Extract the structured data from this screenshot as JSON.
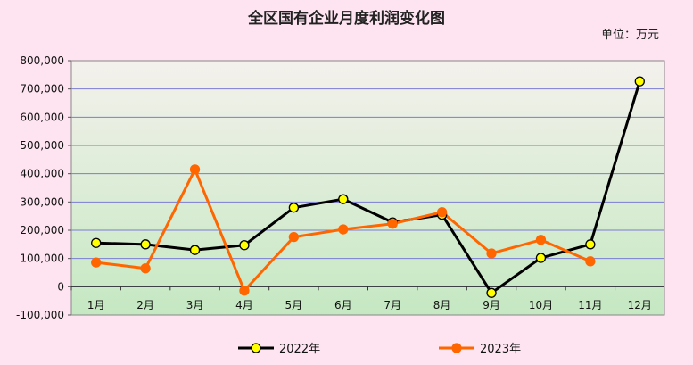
{
  "chart_data": {
    "type": "line",
    "title": "全区国有企业月度利润变化图",
    "unit": "单位：万元",
    "categories": [
      "1月",
      "2月",
      "3月",
      "4月",
      "5月",
      "6月",
      "7月",
      "8月",
      "9月",
      "10月",
      "11月",
      "12月"
    ],
    "series": [
      {
        "name": "2022年",
        "color": "#000000",
        "marker": "#ffff00",
        "values": [
          155000,
          150000,
          130000,
          147000,
          280000,
          310000,
          228000,
          255000,
          -22000,
          102000,
          150000,
          727000
        ]
      },
      {
        "name": "2023年",
        "color": "#ff6600",
        "marker": "#ff6600",
        "values": [
          86000,
          65000,
          415000,
          -14000,
          176000,
          203000,
          223000,
          264000,
          118000,
          166000,
          90000,
          null
        ]
      }
    ],
    "ylim": [
      -100000,
      800000
    ],
    "yticks": [
      -100000,
      0,
      100000,
      200000,
      300000,
      400000,
      500000,
      600000,
      700000,
      800000
    ],
    "ytick_labels": [
      "-100,000",
      "0",
      "100,000",
      "200,000",
      "300,000",
      "400,000",
      "500,000",
      "600,000",
      "700,000",
      "800,000"
    ],
    "grid": true,
    "legend_position": "bottom"
  }
}
